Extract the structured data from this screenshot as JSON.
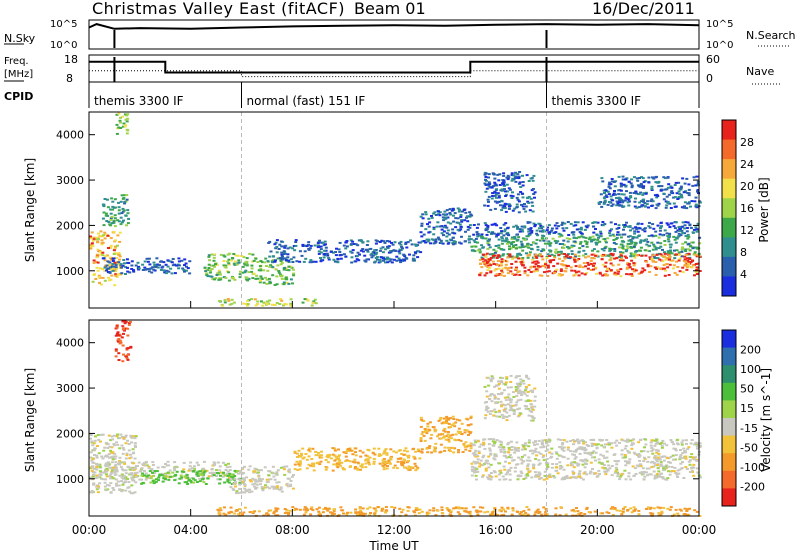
{
  "header": {
    "title": "Christmas Valley East (fitACF)",
    "beam": "Beam 01",
    "date": "16/Dec/2011"
  },
  "top_panels": {
    "nsky_label": "N.Sky",
    "nsky_ticks": [
      "10^5",
      "10^0"
    ],
    "nsearch_label": "N.Search",
    "nsearch_ticks": [
      "10^5",
      "10^0"
    ],
    "freq_label": "Freq.",
    "freq_unit": "[MHz]",
    "freq_ticks": [
      "18",
      "8"
    ],
    "nave_label": "Nave",
    "nave_ticks": [
      "60",
      "0"
    ],
    "cpid_label": "CPID"
  },
  "cpid_segments": [
    {
      "label": "themis 3300 IF",
      "start_h": 0.0
    },
    {
      "label": "normal (fast) 151 IF",
      "start_h": 6.0
    },
    {
      "label": "themis 3300 IF",
      "start_h": 18.0
    }
  ],
  "x_axis": {
    "label": "Time UT",
    "ticks": [
      "00:00",
      "04:00",
      "08:00",
      "12:00",
      "16:00",
      "20:00",
      "00:00"
    ]
  },
  "power_panel": {
    "ylabel": "Slant Range [km]",
    "yticks": [
      "1000",
      "2000",
      "3000",
      "4000"
    ],
    "colorbar_label": "Power [dB]",
    "colorbar_ticks": [
      "4",
      "8",
      "12",
      "16",
      "20",
      "24",
      "28"
    ],
    "colors": [
      "#1a2ee0",
      "#2a5fae",
      "#2f8f8f",
      "#3da84a",
      "#9fd34a",
      "#f2e04b",
      "#f7a83a",
      "#f36a2a",
      "#e8221c"
    ]
  },
  "velocity_panel": {
    "ylabel": "Slant Range [km]",
    "yticks": [
      "1000",
      "2000",
      "3000",
      "4000"
    ],
    "colorbar_label": "Velocity [m s^-1]",
    "colorbar_ticks": [
      "200",
      "100",
      "50",
      "15",
      "-15",
      "-50",
      "-100",
      "-200"
    ],
    "colors": [
      "#1a2ee0",
      "#2f6fae",
      "#2e8f6e",
      "#4cbf3a",
      "#9fd34a",
      "#c8c8c0",
      "#f2c23a",
      "#f39a2a",
      "#f36a2a",
      "#e8221c"
    ]
  },
  "chart_data": [
    {
      "type": "line",
      "title": "N.Sky / N.Search",
      "x_unit": "hours UT",
      "x_range": [
        0,
        24
      ],
      "y_scale": "log",
      "ylim": [
        1,
        100000
      ],
      "series": [
        {
          "name": "N.Sky",
          "x": [
            0,
            0.3,
            1,
            2,
            4,
            6,
            8,
            10,
            12,
            14,
            16,
            18,
            20,
            22,
            24
          ],
          "y": [
            5000,
            20000,
            3000,
            4000,
            3000,
            5000,
            8000,
            10000,
            12000,
            10000,
            15000,
            20000,
            15000,
            20000,
            12000
          ]
        }
      ]
    },
    {
      "type": "line",
      "title": "Freq. / Nave",
      "x_unit": "hours UT",
      "x_range": [
        0,
        24
      ],
      "series": [
        {
          "name": "Freq.",
          "x": [
            0,
            3,
            3,
            15,
            15,
            24
          ],
          "y": [
            15.5,
            15.5,
            11.5,
            11.5,
            15.5,
            15.5
          ]
        },
        {
          "name": "Nave",
          "x": [
            0,
            6,
            6,
            15,
            15,
            24
          ],
          "y": [
            25,
            25,
            12,
            12,
            25,
            25
          ]
        }
      ]
    },
    {
      "type": "heatmap",
      "title": "Power [dB]",
      "x_unit": "hours UT",
      "y_unit": "km",
      "x_range": [
        0,
        24
      ],
      "ylim": [
        180,
        4500
      ],
      "regions": [
        {
          "t0": 0.0,
          "t1": 1.2,
          "r0": 700,
          "r1": 1900,
          "value": 24
        },
        {
          "t0": 0.5,
          "t1": 1.5,
          "r0": 2000,
          "r1": 2700,
          "value": 12
        },
        {
          "t0": 1.0,
          "t1": 1.5,
          "r0": 4000,
          "r1": 4500,
          "value": 16
        },
        {
          "t0": 0.5,
          "t1": 4.0,
          "r0": 950,
          "r1": 1300,
          "value": 6
        },
        {
          "t0": 4.5,
          "t1": 6.5,
          "r0": 800,
          "r1": 1400,
          "value": 16
        },
        {
          "t0": 6.5,
          "t1": 8.0,
          "r0": 700,
          "r1": 1300,
          "value": 16
        },
        {
          "t0": 5.0,
          "t1": 9.0,
          "r0": 250,
          "r1": 400,
          "value": 20
        },
        {
          "t0": 7.0,
          "t1": 13.0,
          "r0": 1200,
          "r1": 1700,
          "value": 6
        },
        {
          "t0": 13.0,
          "t1": 15.0,
          "r0": 1600,
          "r1": 2400,
          "value": 7
        },
        {
          "t0": 15.0,
          "t1": 24.0,
          "r0": 1300,
          "r1": 1800,
          "value": 12
        },
        {
          "t0": 15.3,
          "t1": 24.0,
          "r0": 900,
          "r1": 1400,
          "value": 28
        },
        {
          "t0": 15.0,
          "t1": 24.0,
          "r0": 1800,
          "r1": 2100,
          "value": 6
        },
        {
          "t0": 15.5,
          "t1": 17.5,
          "r0": 2300,
          "r1": 3200,
          "value": 6
        },
        {
          "t0": 20.0,
          "t1": 24.0,
          "r0": 2400,
          "r1": 3100,
          "value": 6
        }
      ]
    },
    {
      "type": "heatmap",
      "title": "Velocity [m s^-1]",
      "x_unit": "hours UT",
      "y_unit": "km",
      "x_range": [
        0,
        24
      ],
      "ylim": [
        180,
        4500
      ],
      "regions": [
        {
          "t0": 0.0,
          "t1": 1.8,
          "r0": 700,
          "r1": 2000,
          "value": 0
        },
        {
          "t0": 0.0,
          "t1": 5.5,
          "r0": 1000,
          "r1": 1400,
          "value": 0
        },
        {
          "t0": 1.0,
          "t1": 1.6,
          "r0": 3600,
          "r1": 4500,
          "value": -200
        },
        {
          "t0": 2.0,
          "t1": 6.0,
          "r0": 900,
          "r1": 1200,
          "value": 60
        },
        {
          "t0": 5.5,
          "t1": 8.0,
          "r0": 700,
          "r1": 1300,
          "value": 0
        },
        {
          "t0": 5.0,
          "t1": 24.0,
          "r0": 200,
          "r1": 400,
          "value": -60
        },
        {
          "t0": 8.0,
          "t1": 13.0,
          "r0": 1200,
          "r1": 1700,
          "value": -40
        },
        {
          "t0": 13.0,
          "t1": 15.0,
          "r0": 1600,
          "r1": 2400,
          "value": -50
        },
        {
          "t0": 15.0,
          "t1": 24.0,
          "r0": 1000,
          "r1": 1900,
          "value": 0
        },
        {
          "t0": 15.5,
          "t1": 17.5,
          "r0": 2300,
          "r1": 3300,
          "value": 0
        }
      ]
    }
  ]
}
